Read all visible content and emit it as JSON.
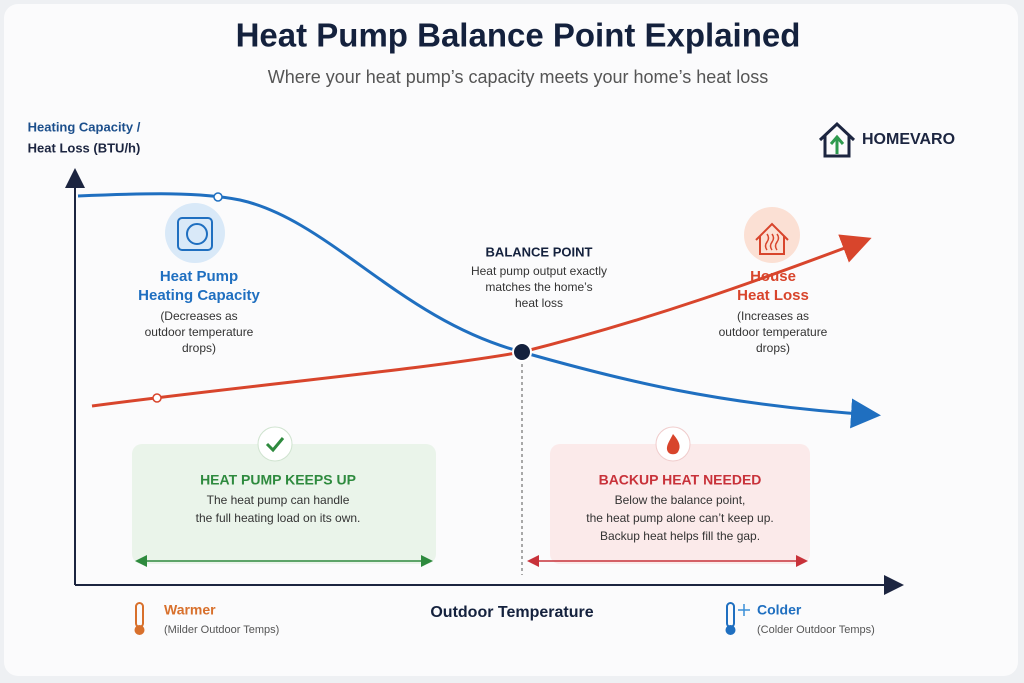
{
  "header": {
    "title": "Heat Pump Balance Point Explained",
    "subtitle": "Where your heat pump’s capacity meets your home’s heat loss"
  },
  "y_axis_label": [
    "Heating Capacity /",
    "Heat Loss (BTU/h)"
  ],
  "brand": "HOMEVARO",
  "heat_pump": {
    "title": [
      "Heat Pump",
      "Heating Capacity"
    ],
    "note": [
      "(Decreases as",
      "outdoor temperature",
      "drops)"
    ]
  },
  "balance_point": {
    "title": "BALANCE POINT",
    "note": [
      "Heat pump output exactly",
      "matches the home’s",
      "heat loss"
    ]
  },
  "house": {
    "title": [
      "House",
      "Heat Loss"
    ],
    "note": [
      "(Increases as",
      "outdoor temperature",
      "drops)"
    ]
  },
  "zones": [
    {
      "title": "HEAT PUMP KEEPS UP",
      "text": [
        "The heat pump can handle",
        "the full heating load on its own."
      ]
    },
    {
      "title": "BACKUP HEAT NEEDED",
      "text": [
        "Below the balance point,",
        "the heat pump alone can’t keep up.",
        "Backup heat helps fill the gap."
      ]
    }
  ],
  "x_axis": {
    "label": "Outdoor Temperature",
    "left": {
      "title": "Warmer",
      "note": "(Milder Outdoor Temps)"
    },
    "right": {
      "title": "Colder",
      "note": "(Colder Outdoor Temps)"
    }
  }
}
